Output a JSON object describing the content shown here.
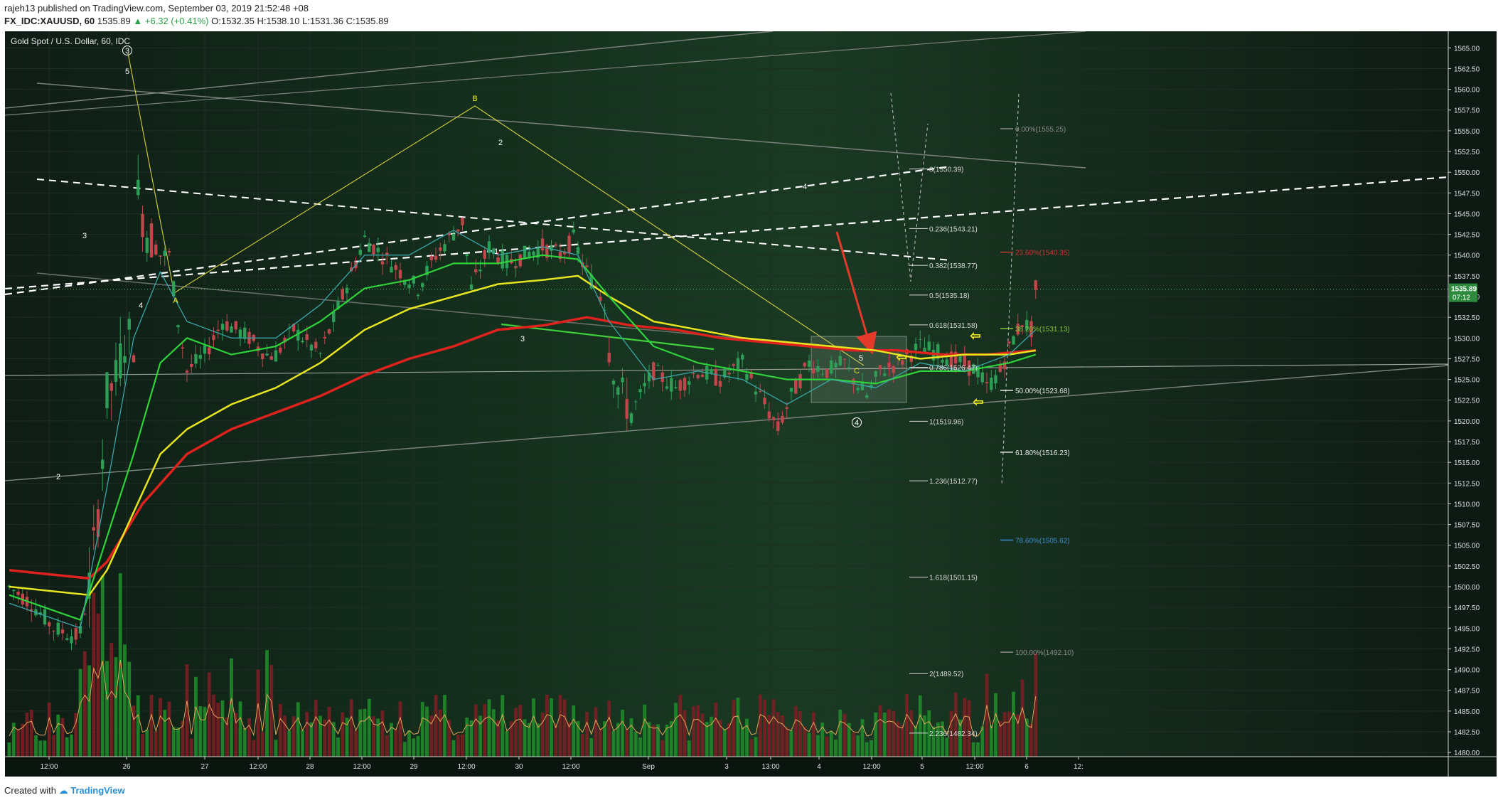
{
  "header": {
    "author": "rajeh13",
    "published": "published on TradingView.com, September 03, 2019 21:52:48 +08",
    "symbol": "FX_IDC:XAUUSD, 60",
    "last": "1535.89",
    "change": "▲ +6.32 (+0.41%)",
    "ohlc": {
      "o_label": "O:",
      "o": "1532.35",
      "h_label": "H:",
      "h": "1538.10",
      "l_label": "L:",
      "l": "1531.36",
      "c_label": "C:",
      "c": "1535.89"
    }
  },
  "footer": {
    "created_with": "Created with",
    "brand": "TradingView"
  },
  "colors": {
    "background": "#0d1712",
    "bull_candle": "#2e9e57",
    "bear_candle": "#c0464c",
    "ema_red": "#e0221e",
    "ema_yellow": "#e7e420",
    "ema_green": "#2fd23a",
    "ema_cyan": "#3aa6a8",
    "wave_line": "#c8c43a",
    "target_arrow": "#e53a2b",
    "hint_arrow": "#f0ea1a",
    "support_line": "#3fd23a"
  },
  "chart_data": {
    "type": "candlestick",
    "title": "Gold Spot / U.S. Dollar, 60, IDC",
    "price_axis": {
      "min": 1479.5,
      "max": 1567.0,
      "ticks": [
        "1565.00",
        "1562.50",
        "1560.00",
        "1557.50",
        "1555.00",
        "1552.50",
        "1550.00",
        "1547.50",
        "1545.00",
        "1542.50",
        "1540.00",
        "1537.50",
        "1535.00",
        "1532.50",
        "1530.00",
        "1527.50",
        "1525.00",
        "1522.50",
        "1520.00",
        "1517.50",
        "1515.00",
        "1512.50",
        "1510.00",
        "1507.50",
        "1505.00",
        "1502.50",
        "1500.00",
        "1497.50",
        "1495.00",
        "1492.50",
        "1490.00",
        "1487.50",
        "1485.00",
        "1482.50",
        "1480.00"
      ],
      "last_price": "1535.89",
      "countdown": "07:12"
    },
    "time_axis": [
      "12:00",
      "26",
      "27",
      "12:00",
      "28",
      "12:00",
      "29",
      "12:00",
      "30",
      "12:00",
      "Sep",
      "3",
      "13:00",
      "4",
      "12:00",
      "5",
      "12:00",
      "6",
      "12:"
    ],
    "candle_seed": 1535.89,
    "anchors": [
      [
        0,
        1500.0
      ],
      [
        5,
        1498.0
      ],
      [
        10,
        1495.0
      ],
      [
        15,
        1494.0
      ],
      [
        16,
        1494.5
      ],
      [
        18,
        1500
      ],
      [
        20,
        1509
      ],
      [
        22,
        1523
      ],
      [
        24,
        1525
      ],
      [
        26,
        1530
      ],
      [
        28,
        1530
      ],
      [
        29,
        1547
      ],
      [
        31,
        1543
      ],
      [
        34,
        1540
      ],
      [
        36,
        1540
      ],
      [
        38,
        1532
      ],
      [
        40,
        1526
      ],
      [
        44,
        1528
      ],
      [
        48,
        1532
      ],
      [
        54,
        1530
      ],
      [
        58,
        1528
      ],
      [
        60,
        1528
      ],
      [
        64,
        1531
      ],
      [
        70,
        1528
      ],
      [
        75,
        1535
      ],
      [
        80,
        1542
      ],
      [
        84,
        1540
      ],
      [
        88,
        1538
      ],
      [
        92,
        1536
      ],
      [
        96,
        1540
      ],
      [
        99,
        1542
      ],
      [
        102,
        1544
      ],
      [
        104,
        1536
      ],
      [
        108,
        1541
      ],
      [
        112,
        1539
      ],
      [
        116,
        1540
      ],
      [
        120,
        1541
      ],
      [
        124,
        1540
      ],
      [
        127,
        1542
      ],
      [
        129,
        1539
      ],
      [
        131,
        1537
      ],
      [
        134,
        1535
      ],
      [
        135,
        1529
      ],
      [
        137,
        1524
      ],
      [
        140,
        1521
      ],
      [
        145,
        1526
      ],
      [
        150,
        1524
      ],
      [
        155,
        1526
      ],
      [
        160,
        1525
      ],
      [
        165,
        1527
      ],
      [
        170,
        1522
      ],
      [
        173,
        1519
      ],
      [
        176,
        1523
      ],
      [
        180,
        1527
      ],
      [
        184,
        1526
      ],
      [
        188,
        1527
      ],
      [
        190,
        1525
      ],
      [
        193,
        1523
      ],
      [
        196,
        1526
      ],
      [
        200,
        1527
      ],
      [
        205,
        1529
      ],
      [
        210,
        1528
      ],
      [
        214,
        1527
      ],
      [
        218,
        1526
      ],
      [
        220,
        1524
      ],
      [
        223,
        1526
      ],
      [
        226,
        1530
      ],
      [
        228,
        1532
      ],
      [
        230,
        1531
      ],
      [
        231,
        1535.89
      ]
    ],
    "ema_lines": [
      {
        "name": "ema_red",
        "points": [
          [
            0,
            1502
          ],
          [
            18,
            1501
          ],
          [
            22,
            1503
          ],
          [
            30,
            1510
          ],
          [
            40,
            1516
          ],
          [
            50,
            1519
          ],
          [
            60,
            1521
          ],
          [
            70,
            1523
          ],
          [
            80,
            1525.5
          ],
          [
            90,
            1527.5
          ],
          [
            100,
            1529
          ],
          [
            110,
            1531
          ],
          [
            120,
            1531.5
          ],
          [
            130,
            1532.5
          ],
          [
            140,
            1531.5
          ],
          [
            150,
            1531
          ],
          [
            160,
            1530
          ],
          [
            170,
            1529.5
          ],
          [
            180,
            1529
          ],
          [
            190,
            1528.5
          ],
          [
            200,
            1528.5
          ],
          [
            210,
            1528
          ],
          [
            220,
            1528
          ],
          [
            231,
            1528.5
          ]
        ]
      },
      {
        "name": "ema_yellow",
        "points": [
          [
            0,
            1500
          ],
          [
            18,
            1499
          ],
          [
            22,
            1502
          ],
          [
            28,
            1509
          ],
          [
            34,
            1516
          ],
          [
            40,
            1519
          ],
          [
            50,
            1522
          ],
          [
            60,
            1524
          ],
          [
            70,
            1527
          ],
          [
            80,
            1531
          ],
          [
            90,
            1533.5
          ],
          [
            100,
            1535
          ],
          [
            110,
            1536.5
          ],
          [
            120,
            1537
          ],
          [
            128,
            1537.5
          ],
          [
            135,
            1535
          ],
          [
            145,
            1532
          ],
          [
            155,
            1531
          ],
          [
            165,
            1530
          ],
          [
            175,
            1529.5
          ],
          [
            185,
            1529
          ],
          [
            195,
            1528.5
          ],
          [
            205,
            1527.5
          ],
          [
            215,
            1528
          ],
          [
            225,
            1528
          ],
          [
            231,
            1528.5
          ]
        ]
      },
      {
        "name": "ema_green",
        "points": [
          [
            0,
            1499
          ],
          [
            16,
            1496
          ],
          [
            22,
            1506
          ],
          [
            28,
            1516
          ],
          [
            34,
            1527
          ],
          [
            40,
            1530
          ],
          [
            50,
            1528
          ],
          [
            60,
            1529
          ],
          [
            70,
            1532
          ],
          [
            80,
            1536
          ],
          [
            90,
            1537
          ],
          [
            100,
            1539
          ],
          [
            110,
            1539
          ],
          [
            120,
            1540
          ],
          [
            128,
            1539.5
          ],
          [
            135,
            1535
          ],
          [
            145,
            1529
          ],
          [
            155,
            1527
          ],
          [
            165,
            1526
          ],
          [
            175,
            1525
          ],
          [
            185,
            1525
          ],
          [
            195,
            1524.5
          ],
          [
            205,
            1526
          ],
          [
            215,
            1526
          ],
          [
            225,
            1527
          ],
          [
            231,
            1528
          ]
        ]
      },
      {
        "name": "ema_cyan",
        "points": [
          [
            0,
            1498
          ],
          [
            16,
            1495
          ],
          [
            22,
            1512
          ],
          [
            28,
            1530
          ],
          [
            34,
            1538
          ],
          [
            40,
            1532
          ],
          [
            50,
            1530
          ],
          [
            60,
            1530
          ],
          [
            70,
            1534
          ],
          [
            80,
            1540
          ],
          [
            90,
            1540
          ],
          [
            100,
            1543
          ],
          [
            110,
            1540
          ],
          [
            120,
            1541
          ],
          [
            128,
            1540
          ],
          [
            135,
            1532
          ],
          [
            145,
            1525
          ],
          [
            155,
            1526
          ],
          [
            165,
            1525
          ],
          [
            175,
            1522
          ],
          [
            185,
            1525
          ],
          [
            195,
            1524
          ],
          [
            205,
            1527
          ],
          [
            215,
            1526
          ],
          [
            225,
            1528
          ],
          [
            231,
            1531
          ]
        ]
      }
    ],
    "wave_labels_circled": [
      "3",
      "4"
    ],
    "wave_labels": [
      "5",
      "4",
      "3",
      "2",
      "A",
      "B",
      "C",
      "1",
      "2",
      "3",
      "4",
      "5"
    ],
    "fib_extension": {
      "levels": [
        {
          "label": "0(1550.39)",
          "price": 1550.39
        },
        {
          "label": "0.236(1543.21)",
          "price": 1543.21
        },
        {
          "label": "0.382(1538.77)",
          "price": 1538.77
        },
        {
          "label": "0.5(1535.18)",
          "price": 1535.18
        },
        {
          "label": "0.618(1531.58)",
          "price": 1531.58
        },
        {
          "label": "0.786(1526.47)",
          "price": 1526.47
        },
        {
          "label": "1(1519.96)",
          "price": 1519.96
        },
        {
          "label": "1.236(1512.77)",
          "price": 1512.77
        },
        {
          "label": "1.618(1501.15)",
          "price": 1501.15
        },
        {
          "label": "2(1489.52)",
          "price": 1489.52
        },
        {
          "label": "2.236(1482.34)",
          "price": 1482.34
        }
      ]
    },
    "fib_retracement": {
      "levels": [
        {
          "label": "0.00%(1555.25)",
          "price": 1555.25,
          "color": "#8c8c8c"
        },
        {
          "label": "23.60%(1540.35)",
          "price": 1540.35,
          "color": "#c93535"
        },
        {
          "label": "38.20%(1531.13)",
          "price": 1531.13,
          "color": "#86c23a"
        },
        {
          "label": "50.00%(1523.68)",
          "price": 1523.68,
          "color": "#e8e8e8"
        },
        {
          "label": "61.80%(1516.23)",
          "price": 1516.23,
          "color": "#e8e8e8"
        },
        {
          "label": "78.60%(1505.62)",
          "price": 1505.62,
          "color": "#3b8fd0"
        },
        {
          "label": "100.00%(1492.10)",
          "price": 1492.1,
          "color": "#8c8c8c"
        }
      ]
    }
  }
}
